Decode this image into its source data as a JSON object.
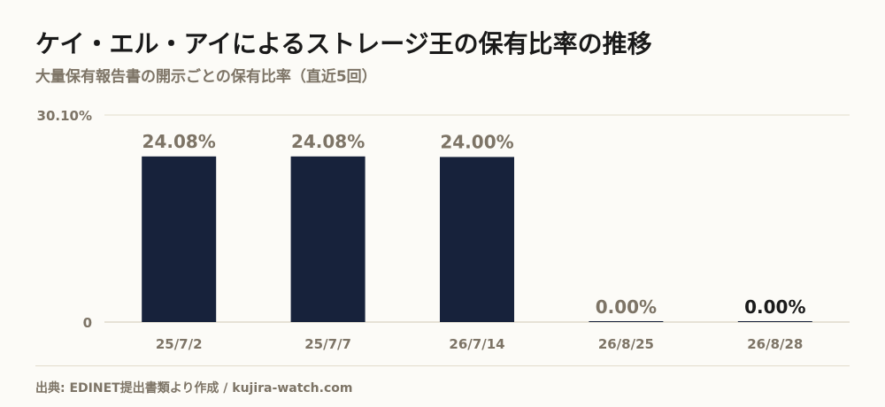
{
  "header": {
    "title": "ケイ・エル・アイによるストレージ王の保有比率の推移",
    "subtitle": "大量保有報告書の開示ごとの保有比率（直近5回）"
  },
  "footer": {
    "source": "出典: EDINET提出書類より作成 / kujira-watch.com"
  },
  "colors": {
    "bar": "#17223b",
    "label": "#7d7466",
    "label_emphasis": "#1a1a1a",
    "grid": "#e2dccb",
    "axis": "#cfc8b4"
  },
  "chart_data": {
    "type": "bar",
    "categories": [
      "25/7/2",
      "25/7/7",
      "26/7/14",
      "26/8/25",
      "26/8/28"
    ],
    "values": [
      24.08,
      24.08,
      24.0,
      0.0,
      0.0
    ],
    "data_labels": [
      "24.08%",
      "24.08%",
      "24.00%",
      "0.00%",
      "0.00%"
    ],
    "ylim": [
      0,
      30.1
    ],
    "y_tick_labels": [
      "0",
      "30.10%"
    ],
    "xlabel": "",
    "ylabel": "",
    "grid": true,
    "legend": "none"
  }
}
